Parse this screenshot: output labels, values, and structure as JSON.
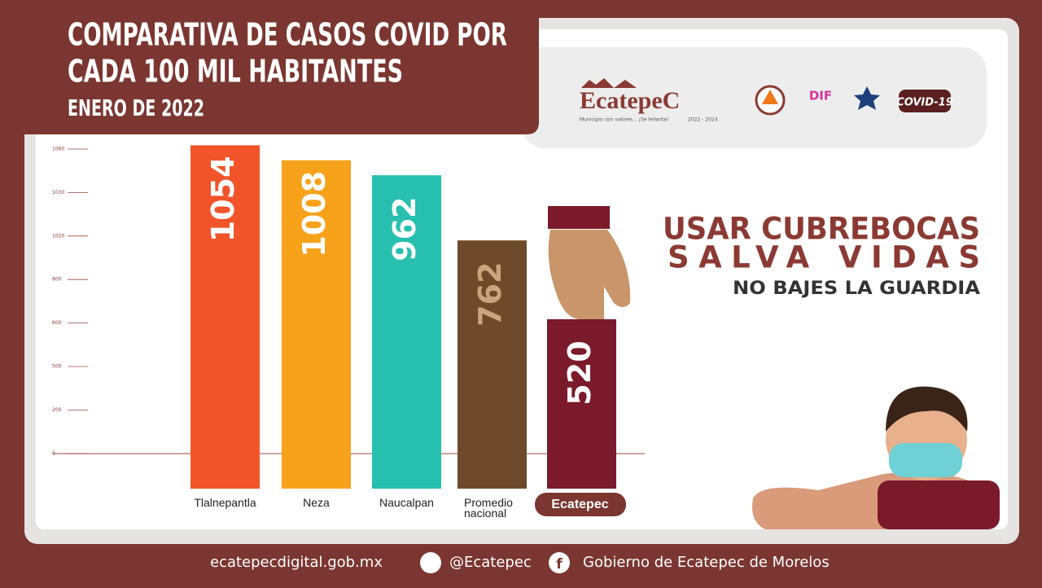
{
  "header": {
    "title_line1": "COMPARATIVA DE CASOS COVID POR",
    "title_line2": "CADA 100 MIL HABITANTES",
    "subtitle": "ENERO DE 2022"
  },
  "logos": {
    "brand": "EcatepeC",
    "tagline": "Municipio con valores... ¡Se leVanta!",
    "period": "2022 - 2024",
    "dif": "DIF",
    "covid": "COVID-19"
  },
  "chart_data": {
    "type": "bar",
    "categories": [
      "Tlalnepantla",
      "Neza",
      "Naucalpan",
      "Promedio nacional",
      "Ecatepec"
    ],
    "values": [
      1054,
      1008,
      962,
      762,
      520
    ],
    "colors": [
      "#f2542a",
      "#f7a21b",
      "#27bfae",
      "#6e4a2a",
      "#7a1a2a"
    ],
    "value_label_colors": [
      "#ffffff",
      "#ffffff",
      "#ffffff",
      "#c9a47f",
      "#ffffff"
    ],
    "axis_labels": [
      "1060",
      "1030",
      "1020",
      "800",
      "600",
      "500",
      "200",
      "0"
    ],
    "ylim": [
      0,
      1100
    ]
  },
  "slogan": {
    "line1": "USAR CUBREBOCAS",
    "line2": "SALVA VIDAS",
    "line3": "NO BAJES LA GUARDIA"
  },
  "footer": {
    "website": "ecatepecdigital.gob.mx",
    "twitter": "@Ecatepec",
    "facebook": "Gobierno de Ecatepec de Morelos"
  }
}
